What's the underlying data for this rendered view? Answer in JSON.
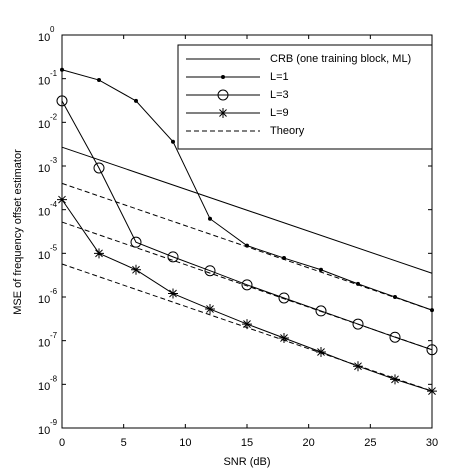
{
  "chart_data": {
    "type": "line",
    "log_y": true,
    "xlabel": "SNR (dB)",
    "ylabel": "MSE of frequency offset estimator",
    "xlim": [
      0,
      30
    ],
    "xticks": [
      0,
      5,
      10,
      15,
      20,
      25,
      30
    ],
    "ylim": [
      1e-09,
      1
    ],
    "yticks": [
      {
        "value": 1e-09,
        "label": "10",
        "exponent": "-9"
      },
      {
        "value": 1e-08,
        "label": "10",
        "exponent": "-8"
      },
      {
        "value": 1e-07,
        "label": "10",
        "exponent": "-7"
      },
      {
        "value": 1e-06,
        "label": "10",
        "exponent": "-6"
      },
      {
        "value": 1e-05,
        "label": "10",
        "exponent": "-5"
      },
      {
        "value": 0.0001,
        "label": "10",
        "exponent": "-4"
      },
      {
        "value": 0.001,
        "label": "10",
        "exponent": "-3"
      },
      {
        "value": 0.01,
        "label": "10",
        "exponent": "-2"
      },
      {
        "value": 0.1,
        "label": "10",
        "exponent": "-1"
      },
      {
        "value": 1,
        "label": "10",
        "exponent": "0"
      }
    ],
    "legend": "upper right",
    "series": [
      {
        "name": "CRB (one training block, ML)",
        "color": "#000000",
        "marker": "none",
        "dash": false,
        "x": [
          0,
          30
        ],
        "values": [
          0.0027,
          3.5e-06
        ]
      },
      {
        "name": "L=1",
        "color": "#000000",
        "marker": "dot",
        "dash": false,
        "x": [
          0,
          3,
          6,
          9,
          12,
          15,
          18,
          21,
          24,
          27,
          30
        ],
        "values": [
          0.16,
          0.093,
          0.031,
          0.0036,
          6.2e-05,
          1.5e-05,
          7.8e-06,
          4.2e-06,
          2e-06,
          1e-06,
          5e-07
        ]
      },
      {
        "name": "L=3",
        "color": "#000000",
        "marker": "circle",
        "dash": false,
        "x": [
          0,
          3,
          6,
          9,
          12,
          15,
          18,
          21,
          24,
          27,
          30
        ],
        "values": [
          0.031,
          0.0009,
          1.8e-05,
          8.3e-06,
          4e-06,
          1.9e-06,
          9.5e-07,
          4.8e-07,
          2.4e-07,
          1.2e-07,
          6.2e-08
        ]
      },
      {
        "name": "L=9",
        "color": "#000000",
        "marker": "star",
        "dash": false,
        "x": [
          0,
          3,
          6,
          9,
          12,
          15,
          18,
          21,
          24,
          27,
          30
        ],
        "values": [
          0.00017,
          1e-05,
          4.2e-06,
          1.2e-06,
          5.3e-07,
          2.4e-07,
          1.15e-07,
          5.5e-08,
          2.6e-08,
          1.3e-08,
          7e-09
        ]
      },
      {
        "name": "Theory",
        "color": "#000000",
        "marker": "none",
        "dash": true,
        "x": [
          0,
          30,
          null,
          0,
          30,
          null,
          0,
          30
        ],
        "values": [
          0.0004,
          5e-07,
          null,
          5.2e-05,
          6.2e-08,
          null,
          5.7e-06,
          7e-09
        ]
      }
    ]
  }
}
